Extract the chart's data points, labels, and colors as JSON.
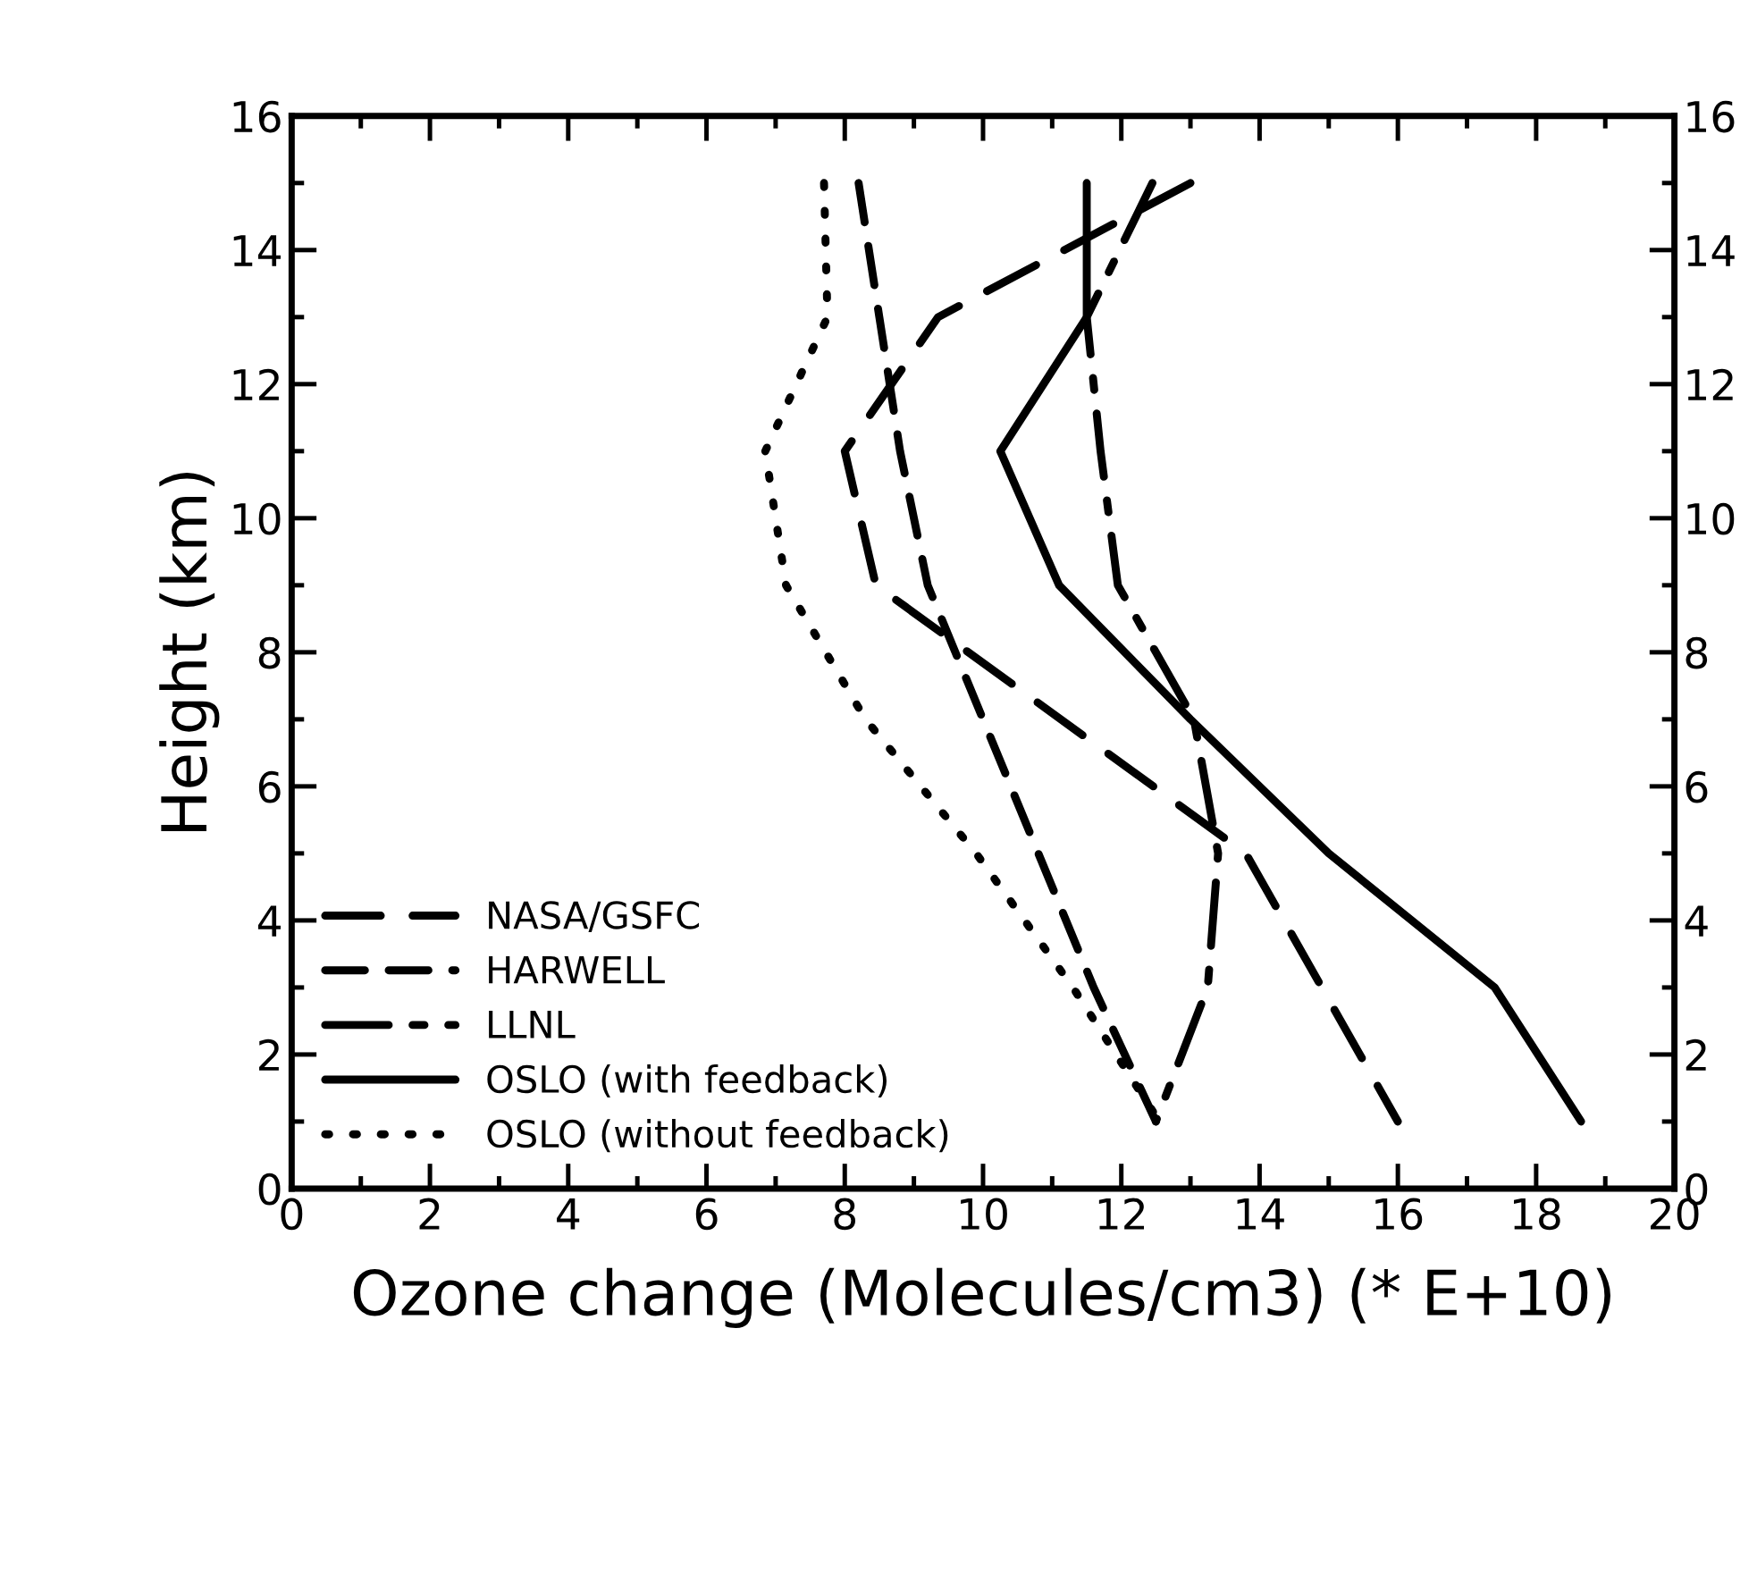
{
  "chart_data": {
    "type": "line",
    "xlabel": "Ozone change (Molecules/cm3) (* E+10)",
    "ylabel": "Height (km)",
    "xlim": [
      0,
      20
    ],
    "xticks": [
      0,
      2,
      4,
      6,
      8,
      10,
      12,
      14,
      16,
      18,
      20
    ],
    "ylim": [
      0,
      16
    ],
    "yticks": [
      0,
      2,
      4,
      6,
      8,
      10,
      12,
      14,
      16
    ],
    "y2lim": [
      0,
      16
    ],
    "y2ticks": [
      0,
      2,
      4,
      6,
      8,
      10,
      12,
      14,
      16
    ],
    "grid": false,
    "legend": "bottom left",
    "marker": "none",
    "series": [
      {
        "name": "NASA/GSFC",
        "color": "#000000",
        "line_style": "longdash",
        "x": [
          13.0,
          9.35,
          8.0,
          8.45,
          13.8,
          16.0
        ],
        "values": [
          15,
          13,
          11,
          9,
          5,
          1
        ]
      },
      {
        "name": "HARWELL",
        "color": "#000000",
        "line_style": "dashed",
        "x": [
          8.2,
          8.5,
          8.8,
          9.2,
          10.0,
          10.8,
          11.6,
          12.5
        ],
        "values": [
          15,
          13,
          11,
          9,
          7,
          5,
          3,
          1
        ]
      },
      {
        "name": "LLNL",
        "color": "#000000",
        "line_style": "dashdot",
        "x": [
          12.45,
          11.5,
          11.7,
          11.95,
          13.05,
          13.4,
          13.25,
          12.5
        ],
        "values": [
          15,
          13,
          11,
          9,
          7,
          5,
          3,
          1
        ]
      },
      {
        "name": "OSLO (with feedback)",
        "color": "#000000",
        "line_style": "solid",
        "x": [
          11.5,
          11.5,
          10.25,
          11.1,
          13.0,
          15.0,
          17.4,
          18.65
        ],
        "values": [
          15,
          13,
          11,
          9,
          7,
          5,
          3,
          1
        ]
      },
      {
        "name": "OSLO (without feedback)",
        "color": "#000000",
        "line_style": "dotted",
        "x": [
          7.7,
          7.75,
          6.85,
          7.15,
          8.3,
          9.9,
          11.3,
          12.55
        ],
        "values": [
          15,
          13,
          11,
          9,
          7,
          5,
          3,
          1
        ]
      }
    ]
  }
}
